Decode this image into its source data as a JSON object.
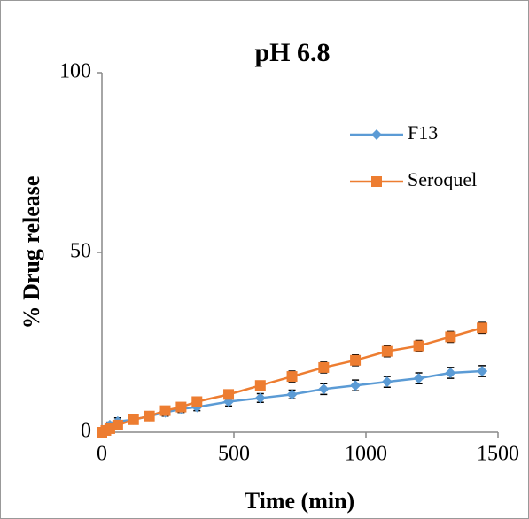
{
  "chart_data": {
    "type": "line",
    "title": "pH 6.8",
    "x_label": "Time (min)",
    "y_label": "% Drug release",
    "x": [
      0,
      15,
      30,
      60,
      120,
      180,
      240,
      300,
      360,
      480,
      600,
      720,
      840,
      960,
      1080,
      1200,
      1320,
      1440
    ],
    "series": [
      {
        "name": "F13",
        "color": "#5b9bd5",
        "marker": "diamond",
        "values": [
          0,
          1,
          2,
          3,
          3.5,
          4.5,
          5.5,
          6.5,
          7,
          8.5,
          9.5,
          10.5,
          12,
          13,
          14,
          15,
          16.5,
          17
        ],
        "errors": [
          0.5,
          0.8,
          0.8,
          1,
          1,
          1,
          1,
          1,
          1,
          1.2,
          1.2,
          1.2,
          1.5,
          1.5,
          1.5,
          1.5,
          1.5,
          1.5
        ]
      },
      {
        "name": "Seroquel",
        "color": "#ed7d31",
        "marker": "square",
        "values": [
          0,
          0.5,
          1,
          2,
          3.5,
          4.5,
          6,
          7,
          8.5,
          10.5,
          13,
          15.5,
          18,
          20,
          22.5,
          24,
          26.5,
          29
        ],
        "errors": [
          0.5,
          0.5,
          0.8,
          0.8,
          1,
          1,
          1,
          1,
          1,
          1.2,
          1.2,
          1.5,
          1.5,
          1.5,
          1.5,
          1.5,
          1.5,
          1.5
        ]
      }
    ],
    "xlim": [
      0,
      1500
    ],
    "xticks": [
      0,
      500,
      1000,
      1500
    ],
    "ylim": [
      0,
      100
    ],
    "yticks": [
      0,
      50,
      100
    ],
    "grid": false,
    "legend": "upper right"
  }
}
